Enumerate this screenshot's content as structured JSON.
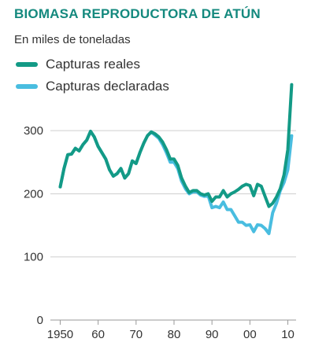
{
  "header": {
    "title": "BIOMASA REPRODUCTORA DE ATÚN",
    "subtitle": "En miles de toneladas"
  },
  "colors": {
    "title": "#14897e",
    "reales": "#139a86",
    "declaradas": "#49bde0",
    "grid": "#cfcfcf",
    "axis": "#999999"
  },
  "chart_data": {
    "type": "line",
    "title": "BIOMASA REPRODUCTORA DE ATÚN",
    "subtitle": "En miles de toneladas",
    "xlabel": "",
    "ylabel": "",
    "xlim": [
      1947,
      2013
    ],
    "ylim": [
      0,
      360
    ],
    "yticks": [
      0,
      100,
      200,
      300
    ],
    "xticks": [
      {
        "value": 1950,
        "label": "1950"
      },
      {
        "value": 1960,
        "label": "60"
      },
      {
        "value": 1970,
        "label": "70"
      },
      {
        "value": 1980,
        "label": "80"
      },
      {
        "value": 1990,
        "label": "90"
      },
      {
        "value": 2000,
        "label": "00"
      },
      {
        "value": 2010,
        "label": "10"
      }
    ],
    "grid": "horizontal",
    "legend": "top-left",
    "series": [
      {
        "name": "Capturas reales",
        "color": "#139a86",
        "x": [
          1950,
          1951,
          1952,
          1953,
          1954,
          1955,
          1956,
          1957,
          1958,
          1959,
          1960,
          1961,
          1962,
          1963,
          1964,
          1965,
          1966,
          1967,
          1968,
          1969,
          1970,
          1971,
          1972,
          1973,
          1974,
          1975,
          1976,
          1977,
          1978,
          1979,
          1980,
          1981,
          1982,
          1983,
          1984,
          1985,
          1986,
          1987,
          1988,
          1989,
          1990,
          1991,
          1992,
          1993,
          1994,
          1995,
          1996,
          1997,
          1998,
          1999,
          2000,
          2001,
          2002,
          2003,
          2004,
          2005,
          2006,
          2007,
          2008,
          2009,
          2010,
          2011
        ],
        "y": [
          211,
          240,
          262,
          263,
          272,
          268,
          278,
          285,
          299,
          290,
          275,
          265,
          255,
          238,
          228,
          232,
          240,
          225,
          232,
          252,
          248,
          265,
          280,
          292,
          298,
          295,
          290,
          282,
          270,
          255,
          255,
          245,
          225,
          212,
          202,
          205,
          205,
          200,
          198,
          200,
          188,
          195,
          195,
          205,
          195,
          200,
          203,
          207,
          212,
          215,
          213,
          197,
          215,
          212,
          196,
          180,
          185,
          195,
          208,
          230,
          270,
          373
        ]
      },
      {
        "name": "Capturas declaradas",
        "color": "#49bde0",
        "x": [
          1950,
          1951,
          1952,
          1953,
          1954,
          1955,
          1956,
          1957,
          1958,
          1959,
          1960,
          1961,
          1962,
          1963,
          1964,
          1965,
          1966,
          1967,
          1968,
          1969,
          1970,
          1971,
          1972,
          1973,
          1974,
          1975,
          1976,
          1977,
          1978,
          1979,
          1980,
          1981,
          1982,
          1983,
          1984,
          1985,
          1986,
          1987,
          1988,
          1989,
          1990,
          1991,
          1992,
          1993,
          1994,
          1995,
          1996,
          1997,
          1998,
          1999,
          2000,
          2001,
          2002,
          2003,
          2004,
          2005,
          2006,
          2007,
          2008,
          2009,
          2010,
          2011
        ],
        "y": [
          211,
          240,
          262,
          263,
          272,
          268,
          278,
          285,
          299,
          290,
          275,
          265,
          255,
          238,
          228,
          232,
          240,
          225,
          232,
          252,
          248,
          265,
          280,
          292,
          298,
          293,
          288,
          278,
          265,
          250,
          250,
          240,
          220,
          208,
          200,
          203,
          203,
          198,
          196,
          197,
          178,
          180,
          178,
          187,
          175,
          175,
          165,
          155,
          155,
          150,
          151,
          140,
          151,
          150,
          145,
          137,
          170,
          185,
          205,
          218,
          238,
          292
        ]
      }
    ]
  }
}
